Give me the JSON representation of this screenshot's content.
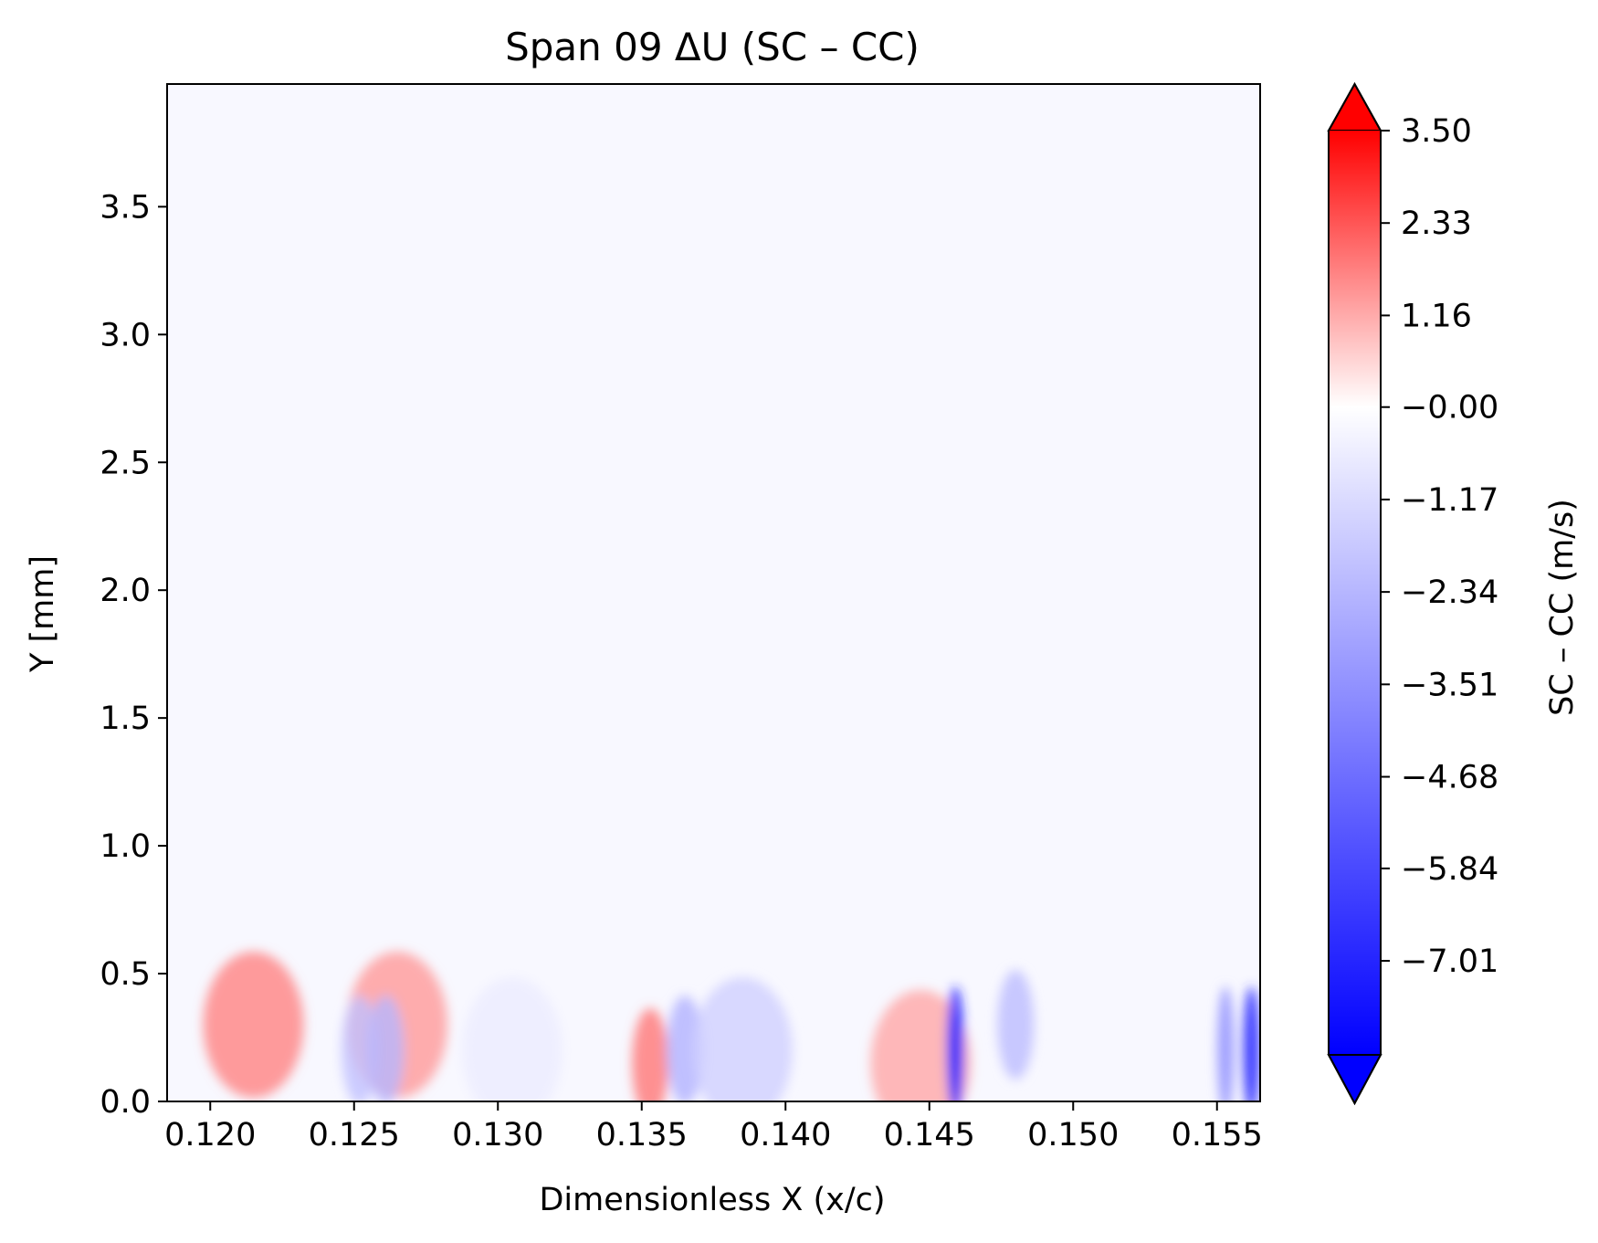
{
  "chart_data": {
    "type": "heatmap",
    "title": "Span 09  ΔU (SC – CC)",
    "xlabel": "Dimensionless X (x/c)",
    "ylabel": "Y [mm]",
    "xlim": [
      0.1185,
      0.1565
    ],
    "ylim": [
      0.0,
      3.98
    ],
    "x_ticks": [
      0.12,
      0.125,
      0.13,
      0.135,
      0.14,
      0.145,
      0.15,
      0.155
    ],
    "x_tick_labels": [
      "0.120",
      "0.125",
      "0.130",
      "0.135",
      "0.140",
      "0.145",
      "0.150",
      "0.155"
    ],
    "y_ticks": [
      0.0,
      0.5,
      1.0,
      1.5,
      2.0,
      2.5,
      3.0,
      3.5
    ],
    "y_tick_labels": [
      "0.0",
      "0.5",
      "1.0",
      "1.5",
      "2.0",
      "2.5",
      "3.0",
      "3.5"
    ],
    "colormap": "bwr",
    "colorbar": {
      "label": "SC – CC  (m/s)",
      "vmin": -8.2,
      "vmax": 3.5,
      "extend": "both",
      "ticks": [
        3.5,
        2.33,
        1.16,
        0.0,
        -1.17,
        -2.34,
        -3.51,
        -4.68,
        -5.84,
        -7.01
      ],
      "tick_labels": [
        "3.50",
        "2.33",
        "1.16",
        "−0.00",
        "−1.17",
        "−2.34",
        "−3.51",
        "−4.68",
        "−5.84",
        "−7.01"
      ],
      "color_max": "#ff0000",
      "color_mid": "#ffffff",
      "color_min": "#0000ff"
    },
    "features": [
      {
        "x": 0.1215,
        "y": 0.3,
        "value": 1.7
      },
      {
        "x": 0.1265,
        "y": 0.3,
        "value": 1.4
      },
      {
        "x": 0.1252,
        "y": 0.2,
        "value": -2.0
      },
      {
        "x": 0.1261,
        "y": 0.2,
        "value": -2.3
      },
      {
        "x": 0.1305,
        "y": 0.2,
        "value": -0.6
      },
      {
        "x": 0.1353,
        "y": 0.15,
        "value": 1.9
      },
      {
        "x": 0.1365,
        "y": 0.2,
        "value": -2.5
      },
      {
        "x": 0.1385,
        "y": 0.2,
        "value": -1.5
      },
      {
        "x": 0.1447,
        "y": 0.15,
        "value": 1.2
      },
      {
        "x": 0.1459,
        "y": 0.2,
        "value": -7.0
      },
      {
        "x": 0.148,
        "y": 0.3,
        "value": -2.2
      },
      {
        "x": 0.1553,
        "y": 0.2,
        "value": -3.2
      },
      {
        "x": 0.1562,
        "y": 0.2,
        "value": -6.5
      }
    ]
  }
}
